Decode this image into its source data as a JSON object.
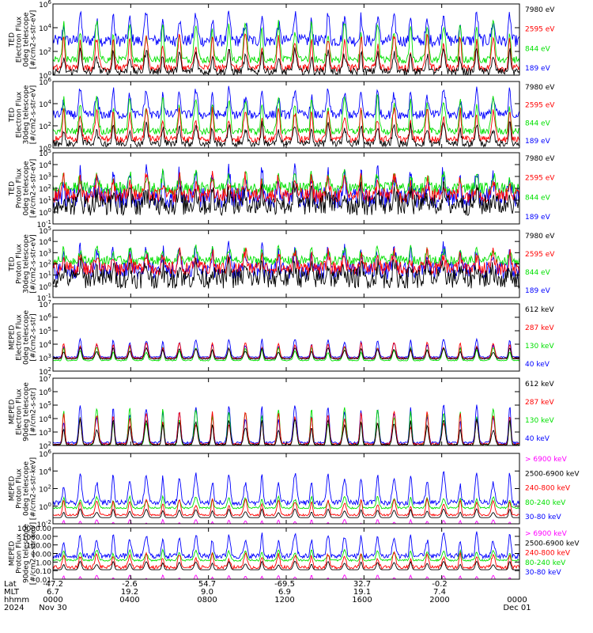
{
  "colors": {
    "blue": "#0000ff",
    "red": "#ff0000",
    "green": "#00e000",
    "black": "#000000",
    "magenta": "#ff00ff"
  },
  "chart_data": [
    {
      "type": "line",
      "ylabel_lines": [
        "TED",
        "Electron Flux",
        "0deg telescope",
        "[#/cm2-s-str-eV]"
      ],
      "scale": "log",
      "ylim_exp": [
        0,
        6
      ],
      "y_ticks": [
        "10^0",
        "10^2",
        "10^4",
        "10^6"
      ],
      "legend": [
        {
          "label": "7980 eV",
          "color": "#000000"
        },
        {
          "label": "2595 eV",
          "color": "#ff0000"
        },
        {
          "label": "844 eV",
          "color": "#00e000"
        },
        {
          "label": "189 eV",
          "color": "#0000ff"
        }
      ],
      "series": [
        {
          "color": "#0000ff",
          "base": 2.9,
          "noise": 0.5,
          "peak": 2.3
        },
        {
          "color": "#00e000",
          "base": 1.3,
          "noise": 0.3,
          "peak": 3.3
        },
        {
          "color": "#ff0000",
          "base": 0.6,
          "noise": 0.3,
          "peak": 2.8
        },
        {
          "color": "#000000",
          "base": 0.3,
          "noise": 0.3,
          "peak": 1.8
        }
      ]
    },
    {
      "type": "line",
      "ylabel_lines": [
        "TED",
        "Electron Flux",
        "30deg telescope",
        "[#/cm2-s-str-eV]"
      ],
      "scale": "log",
      "ylim_exp": [
        0,
        6
      ],
      "y_ticks": [
        "10^0",
        "10^2",
        "10^4",
        "10^6"
      ],
      "legend": [
        {
          "label": "7980 eV",
          "color": "#000000"
        },
        {
          "label": "2595 eV",
          "color": "#ff0000"
        },
        {
          "label": "844 eV",
          "color": "#00e000"
        },
        {
          "label": "189 eV",
          "color": "#0000ff"
        }
      ],
      "series": [
        {
          "color": "#0000ff",
          "base": 3.0,
          "noise": 0.4,
          "peak": 2.3
        },
        {
          "color": "#00e000",
          "base": 1.5,
          "noise": 0.3,
          "peak": 3.2
        },
        {
          "color": "#ff0000",
          "base": 0.8,
          "noise": 0.3,
          "peak": 2.7
        },
        {
          "color": "#000000",
          "base": 0.4,
          "noise": 0.3,
          "peak": 1.8
        }
      ]
    },
    {
      "type": "line",
      "ylabel_lines": [
        "TED",
        "Proton Flux",
        "0deg telescope",
        "[#/cm2-s-str-eV]"
      ],
      "scale": "log",
      "ylim_exp": [
        -1,
        5
      ],
      "y_ticks": [
        "10^-1",
        "10^0",
        "10^1",
        "10^2",
        "10^3",
        "10^4",
        "10^5"
      ],
      "legend": [
        {
          "label": "7980 eV",
          "color": "#000000"
        },
        {
          "label": "2595 eV",
          "color": "#ff0000"
        },
        {
          "label": "844 eV",
          "color": "#00e000"
        },
        {
          "label": "189 eV",
          "color": "#0000ff"
        }
      ],
      "series": [
        {
          "color": "#0000ff",
          "base": 1.2,
          "noise": 0.9,
          "peak": 2.2
        },
        {
          "color": "#00e000",
          "base": 2.0,
          "noise": 0.5,
          "peak": 1.2
        },
        {
          "color": "#ff0000",
          "base": 1.4,
          "noise": 0.6,
          "peak": 1.5
        },
        {
          "color": "#000000",
          "base": 0.6,
          "noise": 0.9,
          "peak": 1.2
        }
      ]
    },
    {
      "type": "line",
      "ylabel_lines": [
        "TED",
        "Proton Flux",
        "30deg telescope",
        "[#/cm2-s-str-eV]"
      ],
      "scale": "log",
      "ylim_exp": [
        -1,
        5
      ],
      "y_ticks": [
        "10^-1",
        "10^0",
        "10^1",
        "10^2",
        "10^3",
        "10^4",
        "10^5"
      ],
      "legend": [
        {
          "label": "7980 eV",
          "color": "#000000"
        },
        {
          "label": "2595 eV",
          "color": "#ff0000"
        },
        {
          "label": "844 eV",
          "color": "#00e000"
        },
        {
          "label": "189 eV",
          "color": "#0000ff"
        }
      ],
      "series": [
        {
          "color": "#0000ff",
          "base": 1.4,
          "noise": 0.8,
          "peak": 2.0
        },
        {
          "color": "#00e000",
          "base": 2.3,
          "noise": 0.4,
          "peak": 1.1
        },
        {
          "color": "#ff0000",
          "base": 1.6,
          "noise": 0.6,
          "peak": 1.4
        },
        {
          "color": "#000000",
          "base": 0.7,
          "noise": 0.9,
          "peak": 1.2
        }
      ]
    },
    {
      "type": "line",
      "ylabel_lines": [
        "MEPED",
        "Electron Flux",
        "0deg telescope",
        "[#/cm2-s-str]"
      ],
      "scale": "log",
      "ylim_exp": [
        1,
        7
      ],
      "y_ticks": [
        "10^2",
        "10^3",
        "10^4",
        "10^5",
        "10^6",
        "10^7"
      ],
      "legend": [
        {
          "label": "612 keV",
          "color": "#000000"
        },
        {
          "label": "287 keV",
          "color": "#ff0000"
        },
        {
          "label": "130 keV",
          "color": "#00e000"
        },
        {
          "label": "40 keV",
          "color": "#0000ff"
        }
      ],
      "series": [
        {
          "color": "#0000ff",
          "base": 2.25,
          "noise": 0.06,
          "peak": 1.6
        },
        {
          "color": "#00e000",
          "base": 1.95,
          "noise": 0.04,
          "peak": 1.2
        },
        {
          "color": "#ff0000",
          "base": 2.15,
          "noise": 0.06,
          "peak": 1.4
        },
        {
          "color": "#000000",
          "base": 2.1,
          "noise": 0.05,
          "peak": 1.0
        }
      ]
    },
    {
      "type": "line",
      "ylabel_lines": [
        "MEPED",
        "Electron Flux",
        "90deg telescope",
        "[#/cm2-s-str]"
      ],
      "scale": "log",
      "ylim_exp": [
        2,
        7
      ],
      "y_ticks": [
        "10^2",
        "10^3",
        "10^4",
        "10^5",
        "10^6",
        "10^7"
      ],
      "legend": [
        {
          "label": "612 keV",
          "color": "#000000"
        },
        {
          "label": "287 keV",
          "color": "#ff0000"
        },
        {
          "label": "130 keV",
          "color": "#00e000"
        },
        {
          "label": "40 keV",
          "color": "#0000ff"
        }
      ],
      "series": [
        {
          "color": "#0000ff",
          "base": 2.2,
          "noise": 0.08,
          "peak": 2.8
        },
        {
          "color": "#00e000",
          "base": 2.0,
          "noise": 0.04,
          "peak": 2.8
        },
        {
          "color": "#ff0000",
          "base": 2.1,
          "noise": 0.08,
          "peak": 2.4
        },
        {
          "color": "#000000",
          "base": 2.05,
          "noise": 0.06,
          "peak": 1.9
        }
      ]
    },
    {
      "type": "line",
      "ylabel_lines": [
        "MEPED",
        "Proton Flux",
        "0deg telescope",
        "[#/cm2-s-str-keV]"
      ],
      "scale": "log",
      "ylim_exp": [
        -2,
        6
      ],
      "y_ticks": [
        "10^-2",
        "10^0",
        "10^2",
        "10^4",
        "10^6"
      ],
      "legend": [
        {
          "label": "> 6900 keV",
          "color": "#ff00ff"
        },
        {
          "label": "2500-6900 keV",
          "color": "#000000"
        },
        {
          "label": "240-800 keV",
          "color": "#ff0000"
        },
        {
          "label": "80-240 keV",
          "color": "#00e000"
        },
        {
          "label": "30-80 keV",
          "color": "#0000ff"
        }
      ],
      "series": [
        {
          "color": "#0000ff",
          "base": 0.4,
          "noise": 0.3,
          "peak": 3.4
        },
        {
          "color": "#00e000",
          "base": -0.2,
          "noise": 0.1,
          "peak": 1.3
        },
        {
          "color": "#ff0000",
          "base": -1.0,
          "noise": 0.1,
          "peak": 1.8
        },
        {
          "color": "#000000",
          "base": -1.3,
          "noise": 0.0,
          "peak": 1.0
        },
        {
          "color": "#ff00ff",
          "base": -2.5,
          "noise": 0.0,
          "peak": 1.0
        }
      ]
    },
    {
      "type": "line",
      "ylabel_lines": [
        "MEPED",
        "Proton Flux",
        "90deg telescope",
        "[#/cm2-s-str-keV]"
      ],
      "scale": "log",
      "ylim_exp": [
        -2,
        4
      ],
      "y_ticks": [
        "0.01",
        "0.10",
        "1.00",
        "10.00",
        "100.00",
        "1000.00",
        "10000.00"
      ],
      "legend": [
        {
          "label": "> 6900 keV",
          "color": "#ff00ff"
        },
        {
          "label": "2500-6900 keV",
          "color": "#000000"
        },
        {
          "label": "240-800 keV",
          "color": "#ff0000"
        },
        {
          "label": "80-240 keV",
          "color": "#00e000"
        },
        {
          "label": "30-80 keV",
          "color": "#0000ff"
        }
      ],
      "series": [
        {
          "color": "#0000ff",
          "base": 0.7,
          "noise": 0.3,
          "peak": 2.6
        },
        {
          "color": "#00e000",
          "base": 0.2,
          "noise": 0.1,
          "peak": 1.2
        },
        {
          "color": "#ff0000",
          "base": -0.6,
          "noise": 0.2,
          "peak": 1.6
        },
        {
          "color": "#000000",
          "base": -0.9,
          "noise": 0.0,
          "peak": 1.0
        },
        {
          "color": "#ff00ff",
          "base": -2.5,
          "noise": 0.0,
          "peak": 1.0
        }
      ]
    }
  ],
  "x_axis": {
    "row_labels": [
      "Lat",
      "MLT",
      "hhmm",
      "2024"
    ],
    "columns": [
      {
        "lat": "-47.2",
        "mlt": "6.7",
        "hhmm": "0000",
        "date": "Nov 30"
      },
      {
        "lat": "-2.6",
        "mlt": "19.2",
        "hhmm": "0400",
        "date": ""
      },
      {
        "lat": "54.7",
        "mlt": "9.0",
        "hhmm": "0800",
        "date": ""
      },
      {
        "lat": "-69.5",
        "mlt": "6.9",
        "hhmm": "1200",
        "date": ""
      },
      {
        "lat": "32.7",
        "mlt": "19.1",
        "hhmm": "1600",
        "date": ""
      },
      {
        "lat": "-0.2",
        "mlt": "7.4",
        "hhmm": "2000",
        "date": ""
      },
      {
        "lat": "",
        "mlt": "",
        "hhmm": "0000",
        "date": "Dec 01"
      }
    ]
  }
}
